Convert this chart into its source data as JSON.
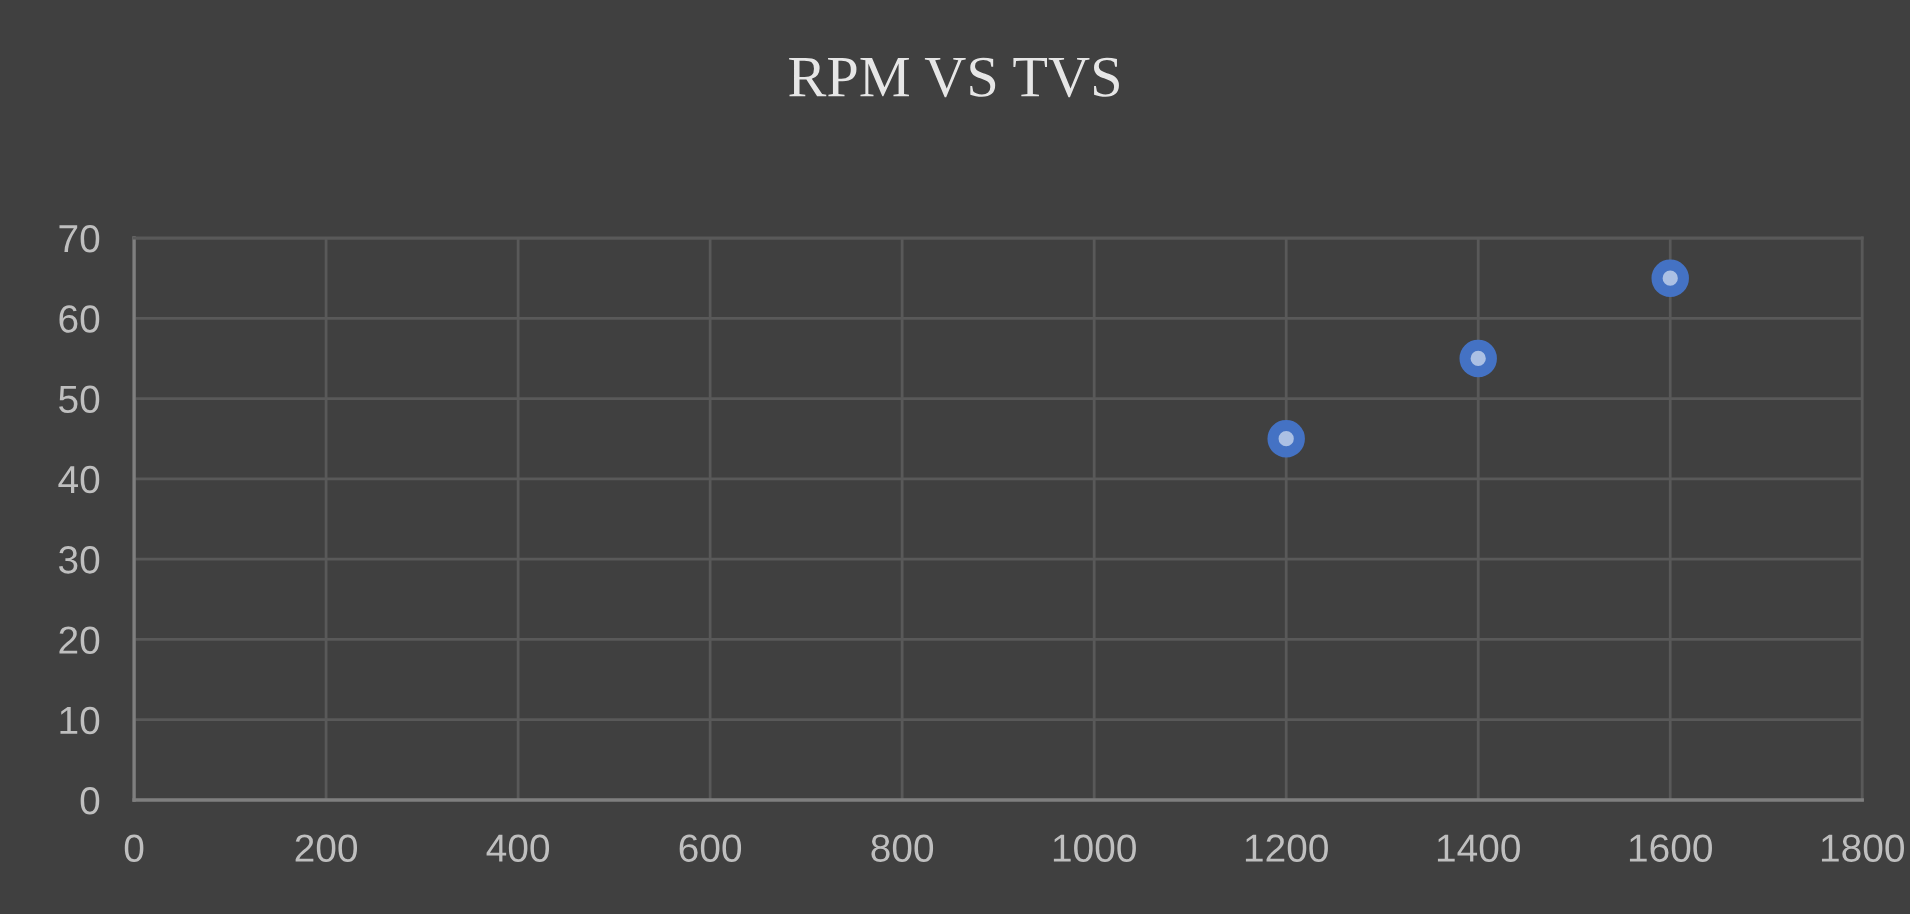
{
  "chart_data": {
    "type": "scatter",
    "title": "RPM VS TVS",
    "x": [
      1200,
      1400,
      1600
    ],
    "series": [
      {
        "color": "#4472c4",
        "values": [
          45,
          55,
          65
        ]
      }
    ],
    "xlim": [
      0,
      1800
    ],
    "ylim": [
      0,
      70
    ],
    "xticks": [
      0,
      200,
      400,
      600,
      800,
      1000,
      1200,
      1400,
      1600,
      1800
    ],
    "yticks": [
      0,
      10,
      20,
      30,
      40,
      50,
      60,
      70
    ],
    "grid": true,
    "marker": "circle"
  }
}
